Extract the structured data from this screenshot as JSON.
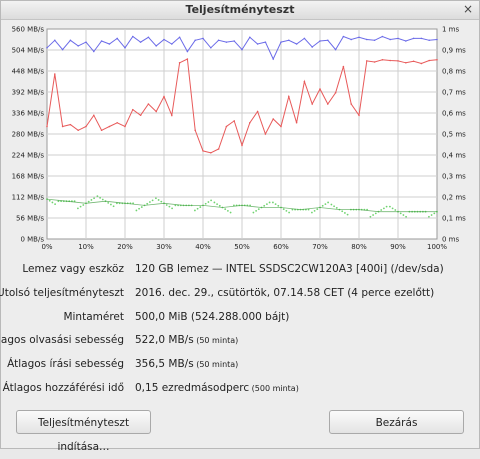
{
  "window": {
    "title": "Teljesítményteszt",
    "close_glyph": "×"
  },
  "chart_data": {
    "type": "line",
    "x_ticks": [
      "0%",
      "10%",
      "20%",
      "30%",
      "40%",
      "50%",
      "60%",
      "70%",
      "80%",
      "90%",
      "100%"
    ],
    "y_left_ticks": [
      "0 MB/s",
      "56 MB/s",
      "112 MB/s",
      "168 MB/s",
      "224 MB/s",
      "280 MB/s",
      "336 MB/s",
      "392 MB/s",
      "448 MB/s",
      "504 MB/s",
      "560 MB/s"
    ],
    "y_right_ticks": [
      "0 ms",
      "0,1 ms",
      "0,2 ms",
      "0,3 ms",
      "0,4 ms",
      "0,5 ms",
      "0,6 ms",
      "0,7 ms",
      "0,8 ms",
      "0,9 ms",
      "1 ms"
    ],
    "ylim_left": [
      0,
      560
    ],
    "ylim_right": [
      0,
      1
    ],
    "grid": true,
    "colors": {
      "read": "#6b6be8",
      "write": "#e85a5a",
      "access": "#4cc84c"
    },
    "series": [
      {
        "key": "read",
        "x": [
          0,
          2,
          4,
          6,
          8,
          10,
          12,
          14,
          16,
          18,
          20,
          22,
          24,
          26,
          28,
          30,
          32,
          34,
          36,
          38,
          40,
          42,
          44,
          46,
          48,
          50,
          52,
          54,
          56,
          58,
          60,
          62,
          64,
          66,
          68,
          70,
          72,
          74,
          76,
          78,
          80,
          82,
          84,
          86,
          88,
          90,
          92,
          94,
          96,
          98,
          100
        ],
        "values": [
          510,
          530,
          505,
          530,
          515,
          525,
          500,
          528,
          520,
          535,
          510,
          540,
          525,
          538,
          515,
          532,
          520,
          538,
          500,
          530,
          535,
          510,
          530,
          525,
          528,
          505,
          538,
          520,
          525,
          480,
          525,
          530,
          520,
          535,
          512,
          528,
          530,
          505,
          540,
          532,
          538,
          532,
          530,
          540,
          532,
          535,
          528,
          535,
          535,
          530,
          532
        ]
      },
      {
        "key": "write",
        "x": [
          0,
          2,
          4,
          6,
          8,
          10,
          12,
          14,
          16,
          18,
          20,
          22,
          24,
          26,
          28,
          30,
          32,
          34,
          36,
          38,
          40,
          42,
          44,
          46,
          48,
          50,
          52,
          54,
          56,
          58,
          60,
          62,
          64,
          66,
          68,
          70,
          72,
          74,
          76,
          78,
          80,
          82,
          84,
          86,
          88,
          90,
          92,
          94,
          96,
          98,
          100
        ],
        "values": [
          300,
          440,
          300,
          305,
          290,
          300,
          330,
          290,
          300,
          310,
          300,
          345,
          330,
          360,
          340,
          380,
          330,
          470,
          480,
          290,
          235,
          230,
          240,
          300,
          315,
          250,
          310,
          340,
          280,
          320,
          300,
          380,
          310,
          420,
          360,
          400,
          360,
          390,
          460,
          360,
          330,
          475,
          472,
          478,
          476,
          475,
          470,
          474,
          468,
          476,
          478
        ]
      },
      {
        "key": "access",
        "x": [
          0,
          5,
          10,
          15,
          20,
          25,
          30,
          35,
          40,
          45,
          50,
          55,
          60,
          65,
          70,
          75,
          80,
          85,
          90,
          95,
          100
        ],
        "values": [
          0.19,
          0.18,
          0.17,
          0.18,
          0.17,
          0.16,
          0.17,
          0.16,
          0.16,
          0.15,
          0.16,
          0.15,
          0.15,
          0.14,
          0.15,
          0.14,
          0.14,
          0.13,
          0.13,
          0.13,
          0.13
        ]
      }
    ]
  },
  "info": [
    {
      "label": "Lemez vagy eszköz",
      "value": "120 GB lemez — INTEL SSDSC2CW120A3 [400i] (/dev/sda)",
      "note": ""
    },
    {
      "label": "Utolsó teljesítményteszt",
      "value": "2016. dec. 29., csütörtök, 07.14.58 CET (4 perce ezelőtt)",
      "note": ""
    },
    {
      "label": "Mintaméret",
      "value": "500,0 MiB (524.288.000 bájt)",
      "note": ""
    },
    {
      "label": "Átlagos olvasási sebesség",
      "value": "522,0 MB/s",
      "note": "(50 minta)"
    },
    {
      "label": "Átlagos írási sebesség",
      "value": "356,5 MB/s",
      "note": "(50 minta)"
    },
    {
      "label": "Átlagos hozzáférési idő",
      "value": "0,15 ezredmásodperc",
      "note": "(500 minta)"
    }
  ],
  "buttons": {
    "start": "Teljesítményteszt indítása…",
    "close": "Bezárás"
  }
}
